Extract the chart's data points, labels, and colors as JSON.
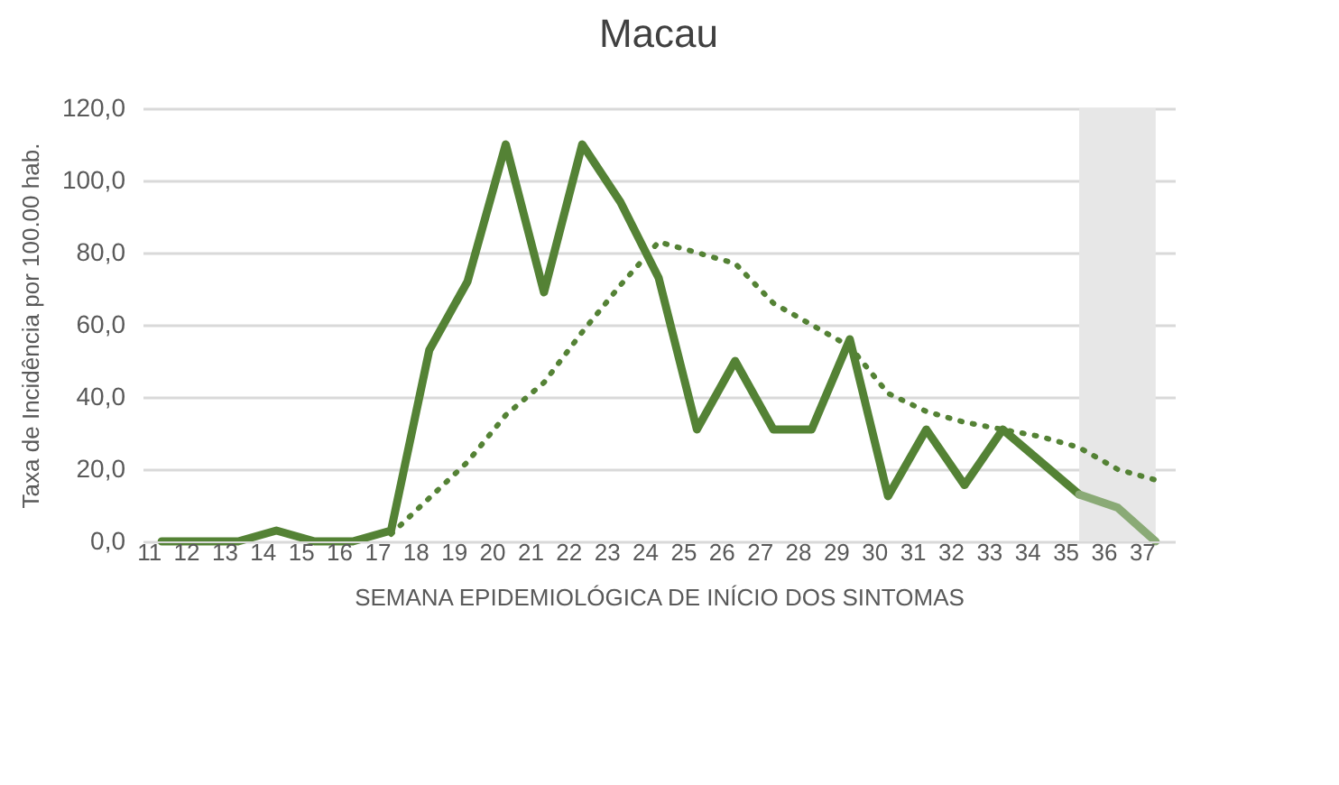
{
  "chart_data": {
    "type": "line",
    "title": "Macau",
    "xlabel": "SEMANA EPIDEMIOLÓGICA DE INÍCIO DOS SINTOMAS",
    "ylabel": "Taxa de Incidência por 100.00 hab.",
    "categories": [
      "11",
      "12",
      "13",
      "14",
      "15",
      "16",
      "17",
      "18",
      "19",
      "20",
      "21",
      "22",
      "23",
      "24",
      "25",
      "26",
      "27",
      "28",
      "29",
      "30",
      "31",
      "32",
      "33",
      "34",
      "35",
      "36",
      "37"
    ],
    "series": [
      {
        "color": "#548235",
        "line_style": "solid",
        "values": [
          0,
          0,
          0,
          3,
          0,
          0,
          3,
          53,
          72,
          110,
          69,
          110,
          94,
          73,
          31,
          50,
          31,
          31,
          56,
          12.5,
          31,
          15.6,
          31,
          22,
          13,
          null,
          null
        ]
      },
      {
        "color": "#8aaa76",
        "line_style": "solid",
        "values": [
          null,
          null,
          null,
          null,
          null,
          null,
          null,
          null,
          null,
          null,
          null,
          null,
          null,
          null,
          null,
          null,
          null,
          null,
          null,
          null,
          null,
          null,
          null,
          null,
          13,
          9.4,
          0
        ]
      },
      {
        "color": "#548235",
        "line_style": "dotted",
        "values": [
          null,
          null,
          null,
          null,
          null,
          null,
          2,
          12,
          22,
          35,
          44,
          58,
          71,
          83,
          80,
          77,
          66,
          60,
          54,
          41,
          36,
          33,
          31,
          29,
          26,
          20,
          17
        ]
      }
    ],
    "ylim": [
      0,
      120
    ],
    "yticks": [
      {
        "value": 0,
        "label": "0,0"
      },
      {
        "value": 20,
        "label": "20,0"
      },
      {
        "value": 40,
        "label": "40,0"
      },
      {
        "value": 60,
        "label": "60,0"
      },
      {
        "value": 80,
        "label": "80,0"
      },
      {
        "value": 100,
        "label": "100,0"
      },
      {
        "value": 120,
        "label": "120,0"
      }
    ],
    "grid": "y",
    "bands": [
      {
        "axis": "x",
        "from": "35",
        "to": "37",
        "color": "#e7e7e7"
      }
    ]
  }
}
